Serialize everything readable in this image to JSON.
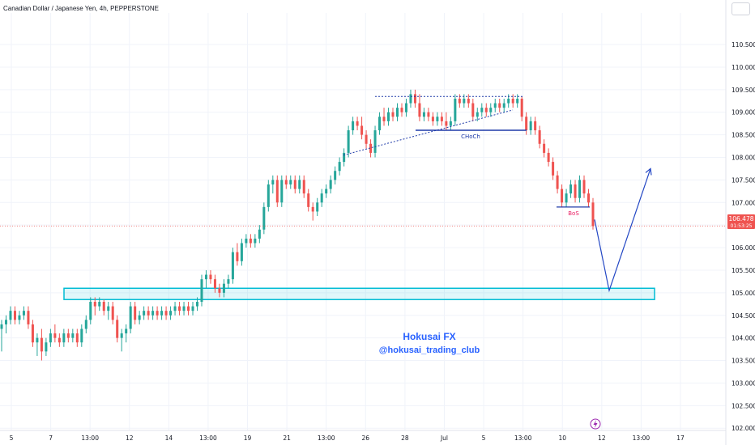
{
  "header": {
    "symbol_title": "Canadian Dollar / Japanese Yen, 4h, PEPPERSTONE"
  },
  "price_tag": {
    "price": "106.478",
    "countdown": "01:53:25",
    "color": "#ef5350"
  },
  "watermark": {
    "line1": "Hokusai FX",
    "line2": "@hokusai_trading_club",
    "color": "#2962ff"
  },
  "annotations": {
    "choch": "CHoCh",
    "bos": "BoS"
  },
  "colors": {
    "up": "#26a69a",
    "down": "#ef5350",
    "zone": "#00bcd4",
    "annotation": "#1e3aa8",
    "bos": "#e91e63"
  },
  "event_icon": "lightning-icon",
  "chart_data": {
    "type": "candlestick",
    "title": "Canadian Dollar / Japanese Yen, 4h, PEPPERSTONE",
    "ylim": [
      101.95,
      111.2
    ],
    "y_ticks": [
      "110.500",
      "110.000",
      "109.500",
      "109.000",
      "108.500",
      "108.000",
      "107.500",
      "107.000",
      "106.500",
      "106.000",
      "105.500",
      "105.000",
      "104.500",
      "104.000",
      "103.500",
      "103.000",
      "102.500",
      "102.000"
    ],
    "x_ticks": [
      "5",
      "7",
      "13:00",
      "12",
      "14",
      "13:00",
      "19",
      "21",
      "13:00",
      "26",
      "28",
      "Jul",
      "5",
      "13:00",
      "10",
      "12",
      "13:00",
      "17"
    ],
    "last_price": 106.478,
    "demand_zone": [
      104.85,
      105.1
    ],
    "choch_level": 108.6,
    "bos_level": 106.9,
    "trend_top_level": 109.35,
    "projection": [
      107.75,
      105.05
    ],
    "candles": [
      {
        "o": 104.2,
        "h": 104.4,
        "l": 103.7,
        "c": 104.3
      },
      {
        "o": 104.3,
        "h": 104.5,
        "l": 104.1,
        "c": 104.4
      },
      {
        "o": 104.4,
        "h": 104.7,
        "l": 104.3,
        "c": 104.6
      },
      {
        "o": 104.6,
        "h": 104.7,
        "l": 104.3,
        "c": 104.4
      },
      {
        "o": 104.4,
        "h": 104.6,
        "l": 104.3,
        "c": 104.5
      },
      {
        "o": 104.5,
        "h": 104.7,
        "l": 104.4,
        "c": 104.6
      },
      {
        "o": 104.6,
        "h": 104.7,
        "l": 104.2,
        "c": 104.3
      },
      {
        "o": 104.3,
        "h": 104.4,
        "l": 103.8,
        "c": 103.9
      },
      {
        "o": 103.9,
        "h": 104.1,
        "l": 103.6,
        "c": 104.0
      },
      {
        "o": 104.0,
        "h": 104.2,
        "l": 103.5,
        "c": 103.7
      },
      {
        "o": 103.7,
        "h": 104.0,
        "l": 103.6,
        "c": 103.9
      },
      {
        "o": 103.9,
        "h": 104.2,
        "l": 103.8,
        "c": 104.1
      },
      {
        "o": 104.1,
        "h": 104.3,
        "l": 103.9,
        "c": 104.0
      },
      {
        "o": 104.0,
        "h": 104.1,
        "l": 103.8,
        "c": 103.9
      },
      {
        "o": 103.9,
        "h": 104.2,
        "l": 103.8,
        "c": 104.1
      },
      {
        "o": 104.1,
        "h": 104.2,
        "l": 103.9,
        "c": 104.0
      },
      {
        "o": 104.0,
        "h": 104.2,
        "l": 103.9,
        "c": 104.1
      },
      {
        "o": 104.1,
        "h": 104.2,
        "l": 103.8,
        "c": 103.9
      },
      {
        "o": 103.9,
        "h": 104.3,
        "l": 103.8,
        "c": 104.2
      },
      {
        "o": 104.2,
        "h": 104.5,
        "l": 104.1,
        "c": 104.4
      },
      {
        "o": 104.4,
        "h": 104.9,
        "l": 104.3,
        "c": 104.8
      },
      {
        "o": 104.8,
        "h": 104.9,
        "l": 104.5,
        "c": 104.7
      },
      {
        "o": 104.7,
        "h": 104.9,
        "l": 104.6,
        "c": 104.8
      },
      {
        "o": 104.8,
        "h": 104.85,
        "l": 104.5,
        "c": 104.6
      },
      {
        "o": 104.6,
        "h": 104.8,
        "l": 104.4,
        "c": 104.7
      },
      {
        "o": 104.7,
        "h": 104.8,
        "l": 104.3,
        "c": 104.4
      },
      {
        "o": 104.4,
        "h": 104.5,
        "l": 103.9,
        "c": 104.0
      },
      {
        "o": 104.0,
        "h": 104.2,
        "l": 103.7,
        "c": 104.1
      },
      {
        "o": 104.1,
        "h": 104.3,
        "l": 103.9,
        "c": 104.2
      },
      {
        "o": 104.2,
        "h": 104.8,
        "l": 104.1,
        "c": 104.7
      },
      {
        "o": 104.7,
        "h": 104.8,
        "l": 104.3,
        "c": 104.4
      },
      {
        "o": 104.4,
        "h": 104.6,
        "l": 104.3,
        "c": 104.5
      },
      {
        "o": 104.5,
        "h": 104.7,
        "l": 104.4,
        "c": 104.6
      },
      {
        "o": 104.6,
        "h": 104.7,
        "l": 104.4,
        "c": 104.5
      },
      {
        "o": 104.5,
        "h": 104.7,
        "l": 104.4,
        "c": 104.6
      },
      {
        "o": 104.6,
        "h": 104.7,
        "l": 104.4,
        "c": 104.5
      },
      {
        "o": 104.5,
        "h": 104.7,
        "l": 104.4,
        "c": 104.6
      },
      {
        "o": 104.6,
        "h": 104.7,
        "l": 104.4,
        "c": 104.5
      },
      {
        "o": 104.5,
        "h": 104.7,
        "l": 104.4,
        "c": 104.6
      },
      {
        "o": 104.6,
        "h": 104.8,
        "l": 104.5,
        "c": 104.7
      },
      {
        "o": 104.7,
        "h": 104.8,
        "l": 104.5,
        "c": 104.6
      },
      {
        "o": 104.6,
        "h": 104.8,
        "l": 104.5,
        "c": 104.7
      },
      {
        "o": 104.7,
        "h": 104.8,
        "l": 104.5,
        "c": 104.6
      },
      {
        "o": 104.6,
        "h": 104.8,
        "l": 104.5,
        "c": 104.7
      },
      {
        "o": 104.7,
        "h": 104.9,
        "l": 104.6,
        "c": 104.8
      },
      {
        "o": 104.8,
        "h": 105.4,
        "l": 104.7,
        "c": 105.3
      },
      {
        "o": 105.3,
        "h": 105.5,
        "l": 105.1,
        "c": 105.4
      },
      {
        "o": 105.4,
        "h": 105.5,
        "l": 105.2,
        "c": 105.3
      },
      {
        "o": 105.3,
        "h": 105.4,
        "l": 105.0,
        "c": 105.1
      },
      {
        "o": 105.1,
        "h": 105.2,
        "l": 104.9,
        "c": 105.0
      },
      {
        "o": 105.0,
        "h": 105.3,
        "l": 104.9,
        "c": 105.2
      },
      {
        "o": 105.2,
        "h": 105.4,
        "l": 105.1,
        "c": 105.3
      },
      {
        "o": 105.3,
        "h": 106.0,
        "l": 105.2,
        "c": 105.9
      },
      {
        "o": 105.9,
        "h": 106.1,
        "l": 105.6,
        "c": 105.7
      },
      {
        "o": 105.7,
        "h": 106.2,
        "l": 105.6,
        "c": 106.1
      },
      {
        "o": 106.1,
        "h": 106.3,
        "l": 106.0,
        "c": 106.2
      },
      {
        "o": 106.2,
        "h": 106.3,
        "l": 106.0,
        "c": 106.1
      },
      {
        "o": 106.1,
        "h": 106.3,
        "l": 106.0,
        "c": 106.2
      },
      {
        "o": 106.2,
        "h": 106.5,
        "l": 106.1,
        "c": 106.4
      },
      {
        "o": 106.4,
        "h": 107.0,
        "l": 106.3,
        "c": 106.9
      },
      {
        "o": 106.9,
        "h": 107.5,
        "l": 106.8,
        "c": 107.4
      },
      {
        "o": 107.4,
        "h": 107.6,
        "l": 107.2,
        "c": 107.5
      },
      {
        "o": 107.5,
        "h": 107.6,
        "l": 106.9,
        "c": 107.0
      },
      {
        "o": 107.0,
        "h": 107.6,
        "l": 106.9,
        "c": 107.5
      },
      {
        "o": 107.5,
        "h": 107.6,
        "l": 107.3,
        "c": 107.4
      },
      {
        "o": 107.4,
        "h": 107.6,
        "l": 107.3,
        "c": 107.5
      },
      {
        "o": 107.5,
        "h": 107.6,
        "l": 107.2,
        "c": 107.3
      },
      {
        "o": 107.3,
        "h": 107.6,
        "l": 107.2,
        "c": 107.5
      },
      {
        "o": 107.5,
        "h": 107.6,
        "l": 107.1,
        "c": 107.2
      },
      {
        "o": 107.2,
        "h": 107.3,
        "l": 106.8,
        "c": 106.9
      },
      {
        "o": 106.9,
        "h": 107.0,
        "l": 106.6,
        "c": 106.8
      },
      {
        "o": 106.8,
        "h": 107.1,
        "l": 106.7,
        "c": 107.0
      },
      {
        "o": 107.0,
        "h": 107.3,
        "l": 106.9,
        "c": 107.2
      },
      {
        "o": 107.2,
        "h": 107.4,
        "l": 107.1,
        "c": 107.3
      },
      {
        "o": 107.3,
        "h": 107.6,
        "l": 107.2,
        "c": 107.5
      },
      {
        "o": 107.5,
        "h": 107.8,
        "l": 107.4,
        "c": 107.7
      },
      {
        "o": 107.7,
        "h": 108.0,
        "l": 107.6,
        "c": 107.9
      },
      {
        "o": 107.9,
        "h": 108.2,
        "l": 107.8,
        "c": 108.1
      },
      {
        "o": 108.1,
        "h": 108.7,
        "l": 108.0,
        "c": 108.6
      },
      {
        "o": 108.6,
        "h": 108.9,
        "l": 108.5,
        "c": 108.8
      },
      {
        "o": 108.8,
        "h": 108.9,
        "l": 108.6,
        "c": 108.7
      },
      {
        "o": 108.7,
        "h": 108.9,
        "l": 108.4,
        "c": 108.5
      },
      {
        "o": 108.5,
        "h": 108.6,
        "l": 108.2,
        "c": 108.3
      },
      {
        "o": 108.3,
        "h": 108.4,
        "l": 108.0,
        "c": 108.1
      },
      {
        "o": 108.1,
        "h": 108.7,
        "l": 108.0,
        "c": 108.6
      },
      {
        "o": 108.6,
        "h": 109.0,
        "l": 108.5,
        "c": 108.9
      },
      {
        "o": 108.9,
        "h": 109.1,
        "l": 108.7,
        "c": 108.8
      },
      {
        "o": 108.8,
        "h": 109.1,
        "l": 108.7,
        "c": 109.0
      },
      {
        "o": 109.0,
        "h": 109.1,
        "l": 108.8,
        "c": 108.9
      },
      {
        "o": 108.9,
        "h": 109.2,
        "l": 108.8,
        "c": 109.1
      },
      {
        "o": 109.1,
        "h": 109.2,
        "l": 108.9,
        "c": 109.0
      },
      {
        "o": 109.0,
        "h": 109.3,
        "l": 108.9,
        "c": 109.2
      },
      {
        "o": 109.2,
        "h": 109.5,
        "l": 109.1,
        "c": 109.4
      },
      {
        "o": 109.4,
        "h": 109.5,
        "l": 109.1,
        "c": 109.2
      },
      {
        "o": 109.2,
        "h": 109.4,
        "l": 108.8,
        "c": 108.9
      },
      {
        "o": 108.9,
        "h": 109.1,
        "l": 108.8,
        "c": 109.0
      },
      {
        "o": 109.0,
        "h": 109.1,
        "l": 108.8,
        "c": 108.9
      },
      {
        "o": 108.9,
        "h": 109.0,
        "l": 108.7,
        "c": 108.8
      },
      {
        "o": 108.8,
        "h": 109.0,
        "l": 108.7,
        "c": 108.9
      },
      {
        "o": 108.9,
        "h": 109.0,
        "l": 108.7,
        "c": 108.8
      },
      {
        "o": 108.8,
        "h": 109.0,
        "l": 108.6,
        "c": 108.7
      },
      {
        "o": 108.7,
        "h": 108.9,
        "l": 108.6,
        "c": 108.8
      },
      {
        "o": 108.8,
        "h": 109.4,
        "l": 108.7,
        "c": 109.3
      },
      {
        "o": 109.3,
        "h": 109.4,
        "l": 109.1,
        "c": 109.2
      },
      {
        "o": 109.2,
        "h": 109.4,
        "l": 109.1,
        "c": 109.3
      },
      {
        "o": 109.3,
        "h": 109.4,
        "l": 109.1,
        "c": 109.2
      },
      {
        "o": 109.2,
        "h": 109.3,
        "l": 108.8,
        "c": 108.9
      },
      {
        "o": 108.9,
        "h": 109.1,
        "l": 108.8,
        "c": 109.0
      },
      {
        "o": 109.0,
        "h": 109.2,
        "l": 108.9,
        "c": 109.1
      },
      {
        "o": 109.1,
        "h": 109.2,
        "l": 108.9,
        "c": 109.0
      },
      {
        "o": 109.0,
        "h": 109.2,
        "l": 108.9,
        "c": 109.1
      },
      {
        "o": 109.1,
        "h": 109.3,
        "l": 109.0,
        "c": 109.2
      },
      {
        "o": 109.2,
        "h": 109.3,
        "l": 109.0,
        "c": 109.1
      },
      {
        "o": 109.1,
        "h": 109.3,
        "l": 109.0,
        "c": 109.2
      },
      {
        "o": 109.2,
        "h": 109.4,
        "l": 109.1,
        "c": 109.3
      },
      {
        "o": 109.3,
        "h": 109.4,
        "l": 109.1,
        "c": 109.2
      },
      {
        "o": 109.2,
        "h": 109.4,
        "l": 109.1,
        "c": 109.3
      },
      {
        "o": 109.3,
        "h": 109.35,
        "l": 108.8,
        "c": 108.9
      },
      {
        "o": 108.9,
        "h": 109.0,
        "l": 108.5,
        "c": 108.6
      },
      {
        "o": 108.6,
        "h": 108.9,
        "l": 108.5,
        "c": 108.8
      },
      {
        "o": 108.8,
        "h": 108.9,
        "l": 108.5,
        "c": 108.6
      },
      {
        "o": 108.6,
        "h": 108.7,
        "l": 108.2,
        "c": 108.3
      },
      {
        "o": 108.3,
        "h": 108.4,
        "l": 108.0,
        "c": 108.1
      },
      {
        "o": 108.1,
        "h": 108.2,
        "l": 107.8,
        "c": 107.9
      },
      {
        "o": 107.9,
        "h": 108.0,
        "l": 107.5,
        "c": 107.6
      },
      {
        "o": 107.6,
        "h": 107.7,
        "l": 107.2,
        "c": 107.3
      },
      {
        "o": 107.3,
        "h": 107.4,
        "l": 106.9,
        "c": 107.0
      },
      {
        "o": 107.0,
        "h": 107.3,
        "l": 106.9,
        "c": 107.2
      },
      {
        "o": 107.2,
        "h": 107.5,
        "l": 107.1,
        "c": 107.4
      },
      {
        "o": 107.4,
        "h": 107.5,
        "l": 107.0,
        "c": 107.1
      },
      {
        "o": 107.1,
        "h": 107.6,
        "l": 107.0,
        "c": 107.5
      },
      {
        "o": 107.5,
        "h": 107.6,
        "l": 107.1,
        "c": 107.2
      },
      {
        "o": 107.2,
        "h": 107.3,
        "l": 106.9,
        "c": 107.0
      },
      {
        "o": 107.0,
        "h": 107.1,
        "l": 106.4,
        "c": 106.478
      }
    ]
  }
}
